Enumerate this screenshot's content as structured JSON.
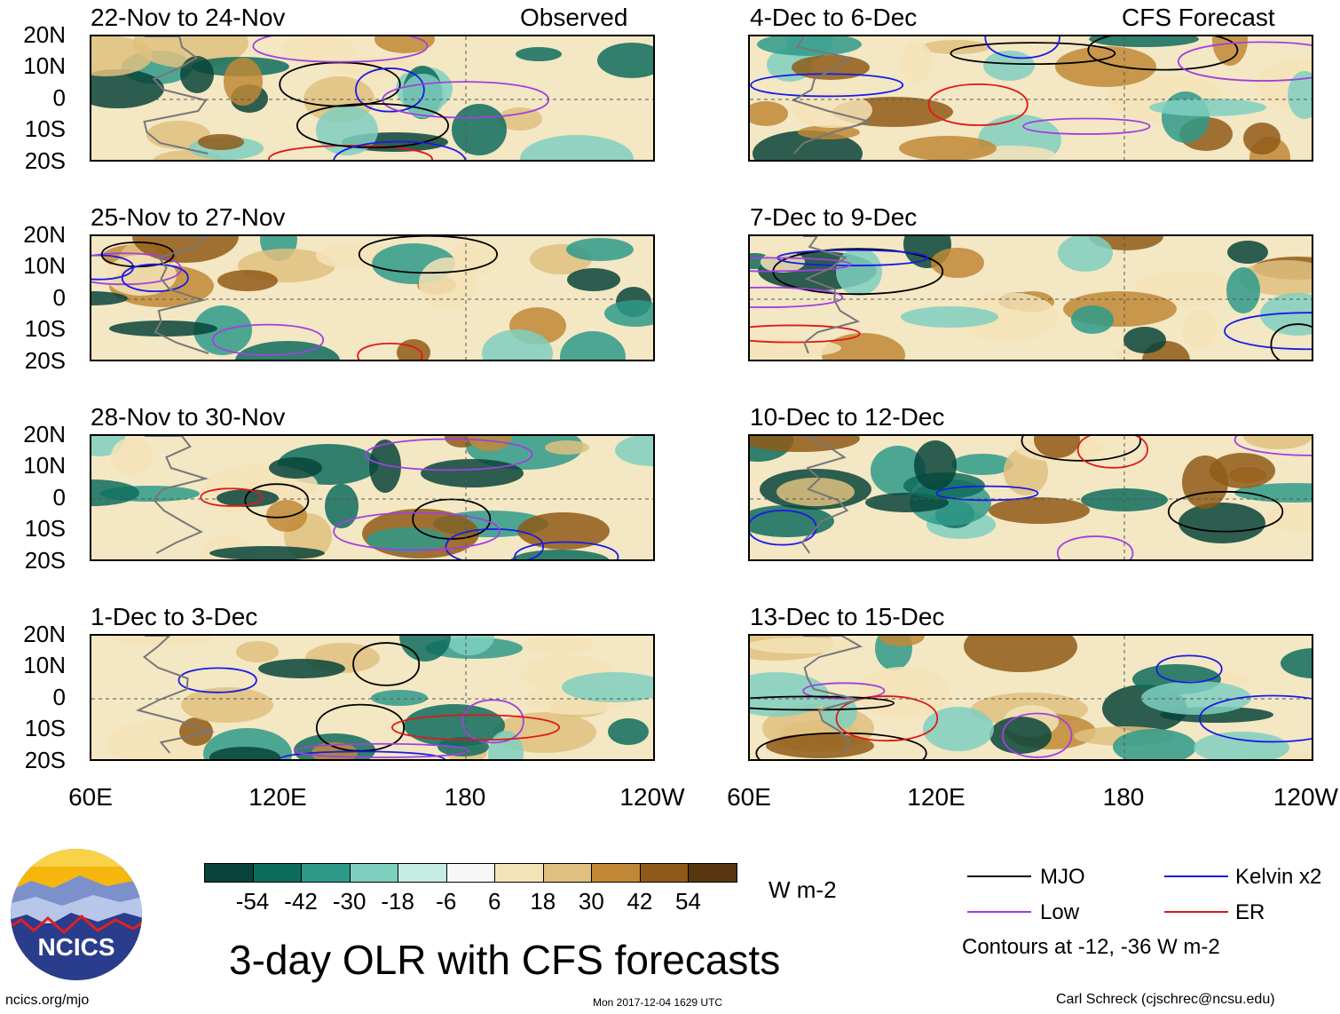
{
  "header": {
    "left_tag": "Observed",
    "right_tag": "CFS Forecast"
  },
  "panels_left": [
    "22-Nov to 24-Nov",
    "25-Nov to 27-Nov",
    "28-Nov to 30-Nov",
    "1-Dec to 3-Dec"
  ],
  "panels_right": [
    "4-Dec to 6-Dec",
    "7-Dec to 9-Dec",
    "10-Dec to 12-Dec",
    "13-Dec to 15-Dec"
  ],
  "lat_labels": [
    "20N",
    "10N",
    "0",
    "10S",
    "20S"
  ],
  "lon_labels": [
    "60E",
    "120E",
    "180",
    "120W"
  ],
  "colorbar": {
    "labels": [
      "-54",
      "-42",
      "-30",
      "-18",
      "-6",
      "6",
      "18",
      "30",
      "42",
      "54"
    ],
    "colors": [
      "#08443a",
      "#0e6c5d",
      "#2f9a8a",
      "#7fcfbf",
      "#c7ece4",
      "#f7f7f7",
      "#f5e3b8",
      "#dfc07f",
      "#c08836",
      "#8f5a17",
      "#573610"
    ],
    "units": "W m-2"
  },
  "title": "3-day OLR with CFS forecasts",
  "legend": {
    "items": [
      {
        "label": "MJO",
        "color": "#000000"
      },
      {
        "label": "Kelvin x2",
        "color": "#1a1ae6"
      },
      {
        "label": "Low",
        "color": "#a040e0"
      },
      {
        "label": "ER",
        "color": "#e01818"
      }
    ],
    "note": "Contours at -12, -36 W m-2"
  },
  "footer": {
    "logo_text": "NCICS",
    "url": "ncics.org/mjo",
    "timestamp": "Mon 2017-12-04 1629 UTC",
    "credit": "Carl Schreck (cjschrec@ncsu.edu)"
  }
}
